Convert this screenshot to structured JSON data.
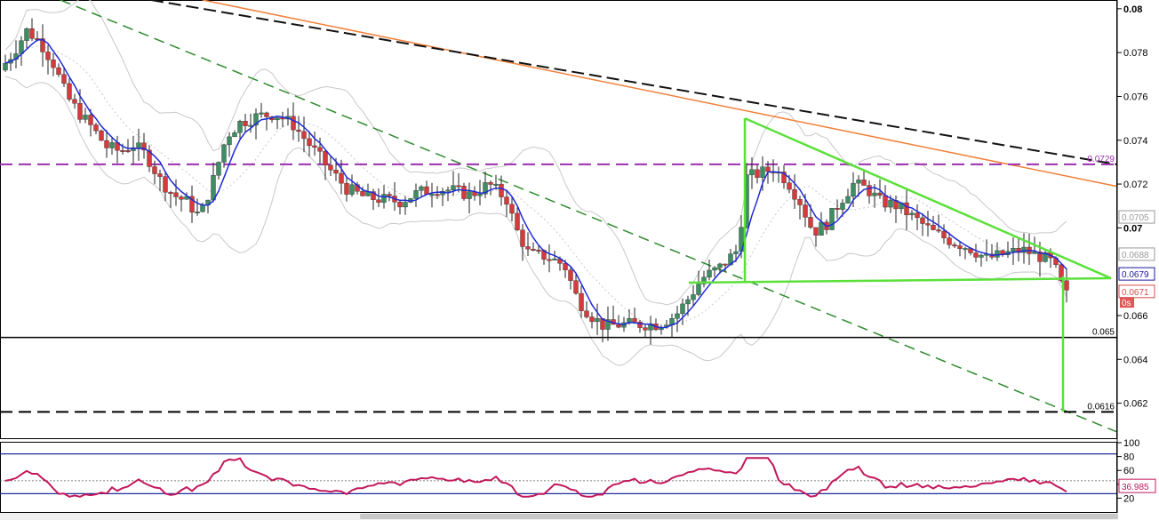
{
  "chart_data": {
    "type": "candlestick",
    "price_axis": {
      "range": [
        0.0604,
        0.0804
      ],
      "ticks": [
        {
          "value": 0.08,
          "label": "0.08",
          "bold": true
        },
        {
          "value": 0.078,
          "label": "0.078",
          "bold": false
        },
        {
          "value": 0.076,
          "label": "0.076",
          "bold": false
        },
        {
          "value": 0.074,
          "label": "0.074",
          "bold": false
        },
        {
          "value": 0.072,
          "label": "0.072",
          "bold": false
        },
        {
          "value": 0.07,
          "label": "0.07",
          "bold": true
        },
        {
          "value": 0.066,
          "label": "0.066",
          "bold": false
        },
        {
          "value": 0.064,
          "label": "0.064",
          "bold": false
        },
        {
          "value": 0.062,
          "label": "0.062",
          "bold": false
        }
      ]
    },
    "price_tags": [
      {
        "label": "0.0729",
        "value": 0.0729,
        "color": "#9b2fae",
        "style": "plain"
      },
      {
        "label": "0.0705",
        "value": 0.0705,
        "color": "#999999",
        "style": "box"
      },
      {
        "label": "0.0688",
        "value": 0.0688,
        "color": "#999999",
        "style": "box"
      },
      {
        "label": "0.0679",
        "value": 0.0679,
        "color": "#1a1aa0",
        "style": "box"
      },
      {
        "label": "0.0671",
        "value": 0.0671,
        "color": "#d94a4a",
        "style": "box"
      },
      {
        "label": "0s",
        "value": 0.0666,
        "color": "#ffffff",
        "style": "fill-red"
      },
      {
        "label": "0.065",
        "value": 0.065,
        "color": "#000000",
        "style": "plain"
      },
      {
        "label": "0.0616",
        "value": 0.0616,
        "color": "#000000",
        "style": "plain"
      }
    ],
    "levels": [
      {
        "value": 0.0729,
        "color": "#9b2fae",
        "dash": "14,7",
        "width": 2
      },
      {
        "value": 0.065,
        "color": "#000000",
        "dash": "",
        "width": 1.5
      },
      {
        "value": 0.0616,
        "color": "#000000",
        "dash": "14,7",
        "width": 2
      }
    ],
    "trend_lines": [
      {
        "name": "orange-resistance",
        "color": "#f2803a",
        "dash": "",
        "width": 1.5,
        "p1": [
          228,
          0.0804
        ],
        "p2": [
          1256,
          0.0719
        ]
      },
      {
        "name": "green-channel",
        "color": "#2e8b2e",
        "dash": "12,7",
        "width": 1.5,
        "p1": [
          68,
          0.0804
        ],
        "p2": [
          1256,
          0.0607
        ]
      },
      {
        "name": "black-ma-long",
        "color": "#111111",
        "dash": "14,6",
        "width": 2,
        "p1": [
          170,
          0.0804
        ],
        "p2": [
          1256,
          0.0729
        ]
      }
    ],
    "triangle": {
      "color": "#5be03a",
      "points": [
        [
          838,
          0.075
        ],
        [
          838,
          0.0675
        ],
        [
          1250,
          0.0677
        ],
        [
          1250,
          0.0677
        ],
        [
          838,
          0.075
        ]
      ],
      "apex": [
        1250,
        0.0677
      ],
      "top": [
        838,
        0.075
      ],
      "base_left": [
        838,
        0.0675
      ],
      "target_start": [
        1196,
        0.0678
      ],
      "target_end": [
        1196,
        0.0616
      ]
    },
    "candles_ohlc_summary": "OHLC series drawn from computed path",
    "rsi": {
      "value_label": "36.985",
      "ticks": [
        {
          "value": 100,
          "label": "100"
        },
        {
          "value": 80,
          "label": "80"
        },
        {
          "value": 60,
          "label": "60"
        },
        {
          "value": 40,
          "label": "40"
        },
        {
          "value": 20,
          "label": "20"
        }
      ],
      "upper_level": 80,
      "lower_level": 20,
      "mid_level": 45,
      "color": "#c2185b"
    }
  }
}
